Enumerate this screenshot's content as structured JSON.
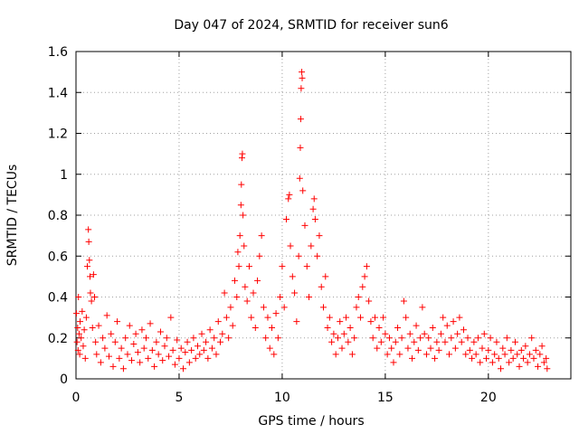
{
  "chart_data": {
    "type": "scatter",
    "title": "Day 047 of 2024, SRMTID for receiver sun6",
    "xlabel": "GPS time / hours",
    "ylabel": "SRMTID / TECUs",
    "xlim": [
      0,
      24
    ],
    "ylim": [
      0,
      1.6
    ],
    "x_ticks": [
      0,
      5,
      10,
      15,
      20
    ],
    "x_tick_labels": [
      "0",
      "5",
      "10",
      "15",
      "20"
    ],
    "y_ticks": [
      0,
      0.2,
      0.4,
      0.6,
      0.8,
      1.0,
      1.2,
      1.4,
      1.6
    ],
    "y_tick_labels": [
      "0",
      "0.2",
      "0.4",
      "0.6",
      "0.8",
      "1",
      "1.2",
      "1.4",
      "1.6"
    ],
    "grid": true,
    "marker": "+",
    "color": "#ff0000",
    "series": [
      {
        "name": "SRMTID",
        "points": [
          [
            0.02,
            0.32
          ],
          [
            0.05,
            0.18
          ],
          [
            0.08,
            0.25
          ],
          [
            0.1,
            0.14
          ],
          [
            0.12,
            0.4
          ],
          [
            0.15,
            0.22
          ],
          [
            0.18,
            0.12
          ],
          [
            0.2,
            0.28
          ],
          [
            0.25,
            0.2
          ],
          [
            0.3,
            0.33
          ],
          [
            0.35,
            0.16
          ],
          [
            0.4,
            0.24
          ],
          [
            0.45,
            0.1
          ],
          [
            0.5,
            0.3
          ],
          [
            0.55,
            0.55
          ],
          [
            0.6,
            0.73
          ],
          [
            0.62,
            0.67
          ],
          [
            0.65,
            0.58
          ],
          [
            0.68,
            0.5
          ],
          [
            0.7,
            0.42
          ],
          [
            0.75,
            0.38
          ],
          [
            0.8,
            0.25
          ],
          [
            0.85,
            0.51
          ],
          [
            0.9,
            0.4
          ],
          [
            0.95,
            0.18
          ],
          [
            1.0,
            0.12
          ],
          [
            1.1,
            0.26
          ],
          [
            1.2,
            0.08
          ],
          [
            1.3,
            0.2
          ],
          [
            1.4,
            0.15
          ],
          [
            1.5,
            0.31
          ],
          [
            1.6,
            0.11
          ],
          [
            1.7,
            0.22
          ],
          [
            1.8,
            0.06
          ],
          [
            1.9,
            0.18
          ],
          [
            2.0,
            0.28
          ],
          [
            2.1,
            0.1
          ],
          [
            2.2,
            0.15
          ],
          [
            2.3,
            0.05
          ],
          [
            2.4,
            0.2
          ],
          [
            2.5,
            0.12
          ],
          [
            2.6,
            0.26
          ],
          [
            2.7,
            0.09
          ],
          [
            2.8,
            0.17
          ],
          [
            2.9,
            0.22
          ],
          [
            3.0,
            0.13
          ],
          [
            3.1,
            0.08
          ],
          [
            3.2,
            0.24
          ],
          [
            3.3,
            0.15
          ],
          [
            3.4,
            0.2
          ],
          [
            3.5,
            0.1
          ],
          [
            3.6,
            0.27
          ],
          [
            3.7,
            0.14
          ],
          [
            3.8,
            0.06
          ],
          [
            3.9,
            0.18
          ],
          [
            4.0,
            0.12
          ],
          [
            4.1,
            0.23
          ],
          [
            4.2,
            0.09
          ],
          [
            4.3,
            0.16
          ],
          [
            4.4,
            0.2
          ],
          [
            4.5,
            0.11
          ],
          [
            4.6,
            0.3
          ],
          [
            4.7,
            0.14
          ],
          [
            4.8,
            0.07
          ],
          [
            4.9,
            0.19
          ],
          [
            5.0,
            0.1
          ],
          [
            5.1,
            0.15
          ],
          [
            5.2,
            0.05
          ],
          [
            5.3,
            0.13
          ],
          [
            5.4,
            0.18
          ],
          [
            5.5,
            0.08
          ],
          [
            5.6,
            0.14
          ],
          [
            5.7,
            0.2
          ],
          [
            5.8,
            0.1
          ],
          [
            5.9,
            0.16
          ],
          [
            6.0,
            0.12
          ],
          [
            6.1,
            0.22
          ],
          [
            6.2,
            0.14
          ],
          [
            6.3,
            0.18
          ],
          [
            6.4,
            0.1
          ],
          [
            6.5,
            0.24
          ],
          [
            6.6,
            0.15
          ],
          [
            6.7,
            0.2
          ],
          [
            6.8,
            0.12
          ],
          [
            6.9,
            0.28
          ],
          [
            7.0,
            0.18
          ],
          [
            7.1,
            0.22
          ],
          [
            7.2,
            0.42
          ],
          [
            7.3,
            0.3
          ],
          [
            7.4,
            0.2
          ],
          [
            7.5,
            0.35
          ],
          [
            7.6,
            0.26
          ],
          [
            7.7,
            0.48
          ],
          [
            7.8,
            0.4
          ],
          [
            7.85,
            0.62
          ],
          [
            7.9,
            0.55
          ],
          [
            7.95,
            0.7
          ],
          [
            8.0,
            0.85
          ],
          [
            8.02,
            0.95
          ],
          [
            8.05,
            1.08
          ],
          [
            8.07,
            1.1
          ],
          [
            8.1,
            0.8
          ],
          [
            8.15,
            0.65
          ],
          [
            8.2,
            0.45
          ],
          [
            8.3,
            0.38
          ],
          [
            8.4,
            0.55
          ],
          [
            8.5,
            0.3
          ],
          [
            8.6,
            0.42
          ],
          [
            8.7,
            0.25
          ],
          [
            8.8,
            0.48
          ],
          [
            8.9,
            0.6
          ],
          [
            9.0,
            0.7
          ],
          [
            9.1,
            0.35
          ],
          [
            9.2,
            0.2
          ],
          [
            9.3,
            0.3
          ],
          [
            9.4,
            0.15
          ],
          [
            9.5,
            0.25
          ],
          [
            9.6,
            0.12
          ],
          [
            9.7,
            0.32
          ],
          [
            9.8,
            0.2
          ],
          [
            9.9,
            0.4
          ],
          [
            10.0,
            0.55
          ],
          [
            10.1,
            0.35
          ],
          [
            10.2,
            0.78
          ],
          [
            10.3,
            0.88
          ],
          [
            10.35,
            0.9
          ],
          [
            10.4,
            0.65
          ],
          [
            10.5,
            0.5
          ],
          [
            10.6,
            0.42
          ],
          [
            10.7,
            0.28
          ],
          [
            10.8,
            0.6
          ],
          [
            10.85,
            0.98
          ],
          [
            10.88,
            1.13
          ],
          [
            10.9,
            1.27
          ],
          [
            10.92,
            1.42
          ],
          [
            10.95,
            1.5
          ],
          [
            10.97,
            1.47
          ],
          [
            11.0,
            0.92
          ],
          [
            11.1,
            0.75
          ],
          [
            11.2,
            0.55
          ],
          [
            11.3,
            0.4
          ],
          [
            11.4,
            0.65
          ],
          [
            11.5,
            0.83
          ],
          [
            11.55,
            0.88
          ],
          [
            11.6,
            0.78
          ],
          [
            11.7,
            0.6
          ],
          [
            11.8,
            0.7
          ],
          [
            11.9,
            0.45
          ],
          [
            12.0,
            0.35
          ],
          [
            12.1,
            0.5
          ],
          [
            12.2,
            0.25
          ],
          [
            12.3,
            0.3
          ],
          [
            12.4,
            0.18
          ],
          [
            12.5,
            0.22
          ],
          [
            12.6,
            0.12
          ],
          [
            12.7,
            0.2
          ],
          [
            12.8,
            0.28
          ],
          [
            12.9,
            0.15
          ],
          [
            13.0,
            0.22
          ],
          [
            13.1,
            0.3
          ],
          [
            13.2,
            0.18
          ],
          [
            13.3,
            0.25
          ],
          [
            13.4,
            0.12
          ],
          [
            13.5,
            0.2
          ],
          [
            13.6,
            0.35
          ],
          [
            13.7,
            0.4
          ],
          [
            13.8,
            0.3
          ],
          [
            13.9,
            0.45
          ],
          [
            14.0,
            0.5
          ],
          [
            14.1,
            0.55
          ],
          [
            14.2,
            0.38
          ],
          [
            14.3,
            0.28
          ],
          [
            14.4,
            0.2
          ],
          [
            14.5,
            0.3
          ],
          [
            14.6,
            0.15
          ],
          [
            14.7,
            0.25
          ],
          [
            14.8,
            0.18
          ],
          [
            14.9,
            0.3
          ],
          [
            15.0,
            0.22
          ],
          [
            15.1,
            0.12
          ],
          [
            15.2,
            0.2
          ],
          [
            15.3,
            0.15
          ],
          [
            15.4,
            0.08
          ],
          [
            15.5,
            0.18
          ],
          [
            15.6,
            0.25
          ],
          [
            15.7,
            0.12
          ],
          [
            15.8,
            0.2
          ],
          [
            15.9,
            0.38
          ],
          [
            16.0,
            0.3
          ],
          [
            16.1,
            0.15
          ],
          [
            16.2,
            0.22
          ],
          [
            16.3,
            0.1
          ],
          [
            16.4,
            0.18
          ],
          [
            16.5,
            0.26
          ],
          [
            16.6,
            0.14
          ],
          [
            16.7,
            0.2
          ],
          [
            16.8,
            0.35
          ],
          [
            16.9,
            0.22
          ],
          [
            17.0,
            0.12
          ],
          [
            17.1,
            0.2
          ],
          [
            17.2,
            0.15
          ],
          [
            17.3,
            0.25
          ],
          [
            17.4,
            0.1
          ],
          [
            17.5,
            0.18
          ],
          [
            17.6,
            0.14
          ],
          [
            17.7,
            0.22
          ],
          [
            17.8,
            0.3
          ],
          [
            17.9,
            0.18
          ],
          [
            18.0,
            0.26
          ],
          [
            18.1,
            0.12
          ],
          [
            18.2,
            0.2
          ],
          [
            18.3,
            0.28
          ],
          [
            18.4,
            0.15
          ],
          [
            18.5,
            0.22
          ],
          [
            18.6,
            0.3
          ],
          [
            18.7,
            0.18
          ],
          [
            18.8,
            0.24
          ],
          [
            18.9,
            0.12
          ],
          [
            19.0,
            0.2
          ],
          [
            19.1,
            0.14
          ],
          [
            19.2,
            0.1
          ],
          [
            19.3,
            0.18
          ],
          [
            19.4,
            0.12
          ],
          [
            19.5,
            0.2
          ],
          [
            19.6,
            0.08
          ],
          [
            19.7,
            0.15
          ],
          [
            19.8,
            0.22
          ],
          [
            19.9,
            0.1
          ],
          [
            20.0,
            0.14
          ],
          [
            20.1,
            0.2
          ],
          [
            20.2,
            0.08
          ],
          [
            20.3,
            0.12
          ],
          [
            20.4,
            0.18
          ],
          [
            20.5,
            0.1
          ],
          [
            20.6,
            0.05
          ],
          [
            20.7,
            0.15
          ],
          [
            20.8,
            0.12
          ],
          [
            20.9,
            0.2
          ],
          [
            21.0,
            0.08
          ],
          [
            21.1,
            0.14
          ],
          [
            21.2,
            0.1
          ],
          [
            21.3,
            0.18
          ],
          [
            21.4,
            0.12
          ],
          [
            21.5,
            0.06
          ],
          [
            21.6,
            0.14
          ],
          [
            21.7,
            0.1
          ],
          [
            21.8,
            0.16
          ],
          [
            21.9,
            0.08
          ],
          [
            22.0,
            0.12
          ],
          [
            22.1,
            0.2
          ],
          [
            22.2,
            0.1
          ],
          [
            22.3,
            0.14
          ],
          [
            22.4,
            0.06
          ],
          [
            22.5,
            0.12
          ],
          [
            22.6,
            0.16
          ],
          [
            22.7,
            0.08
          ],
          [
            22.8,
            0.1
          ],
          [
            22.85,
            0.05
          ]
        ]
      }
    ]
  }
}
